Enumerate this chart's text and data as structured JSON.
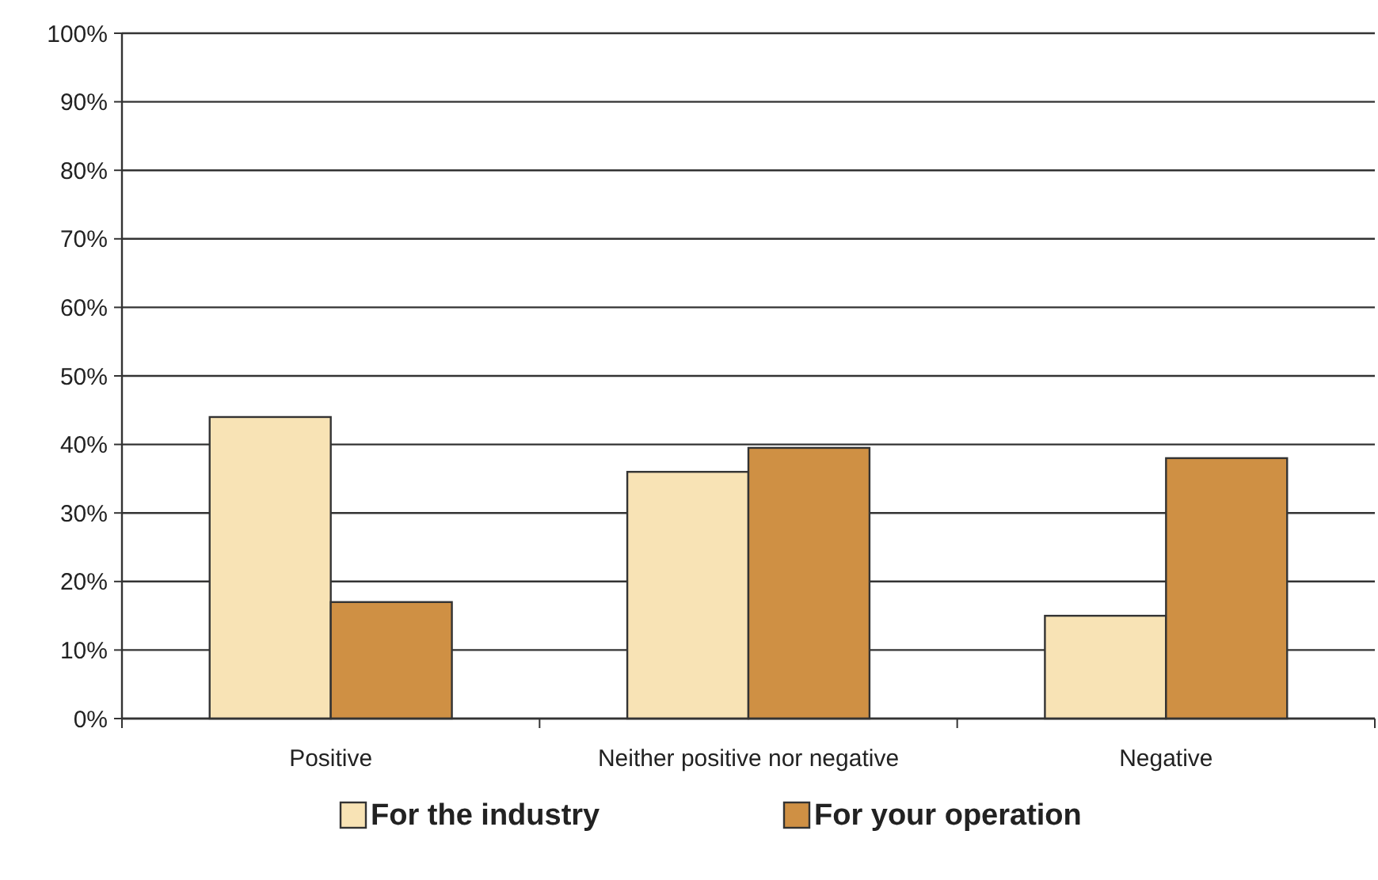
{
  "chart_data": {
    "type": "bar",
    "categories": [
      "Positive",
      "Neither positive nor negative",
      "Negative"
    ],
    "series": [
      {
        "name": "For the industry",
        "color": "#f8e3b5",
        "values": [
          44,
          36,
          15
        ]
      },
      {
        "name": "For your operation",
        "color": "#cf9044",
        "values": [
          17,
          39.5,
          38
        ]
      }
    ],
    "ylim": [
      0,
      100
    ],
    "yticks": [
      {
        "value": 0,
        "label": "0%"
      },
      {
        "value": 10,
        "label": "10%"
      },
      {
        "value": 20,
        "label": "20%"
      },
      {
        "value": 30,
        "label": "30%"
      },
      {
        "value": 40,
        "label": "40%"
      },
      {
        "value": 50,
        "label": "50%"
      },
      {
        "value": 60,
        "label": "60%"
      },
      {
        "value": 70,
        "label": "70%"
      },
      {
        "value": 80,
        "label": "80%"
      },
      {
        "value": 90,
        "label": "90%"
      },
      {
        "value": 100,
        "label": "100%"
      }
    ],
    "grid": "y",
    "legend": "bottom"
  }
}
